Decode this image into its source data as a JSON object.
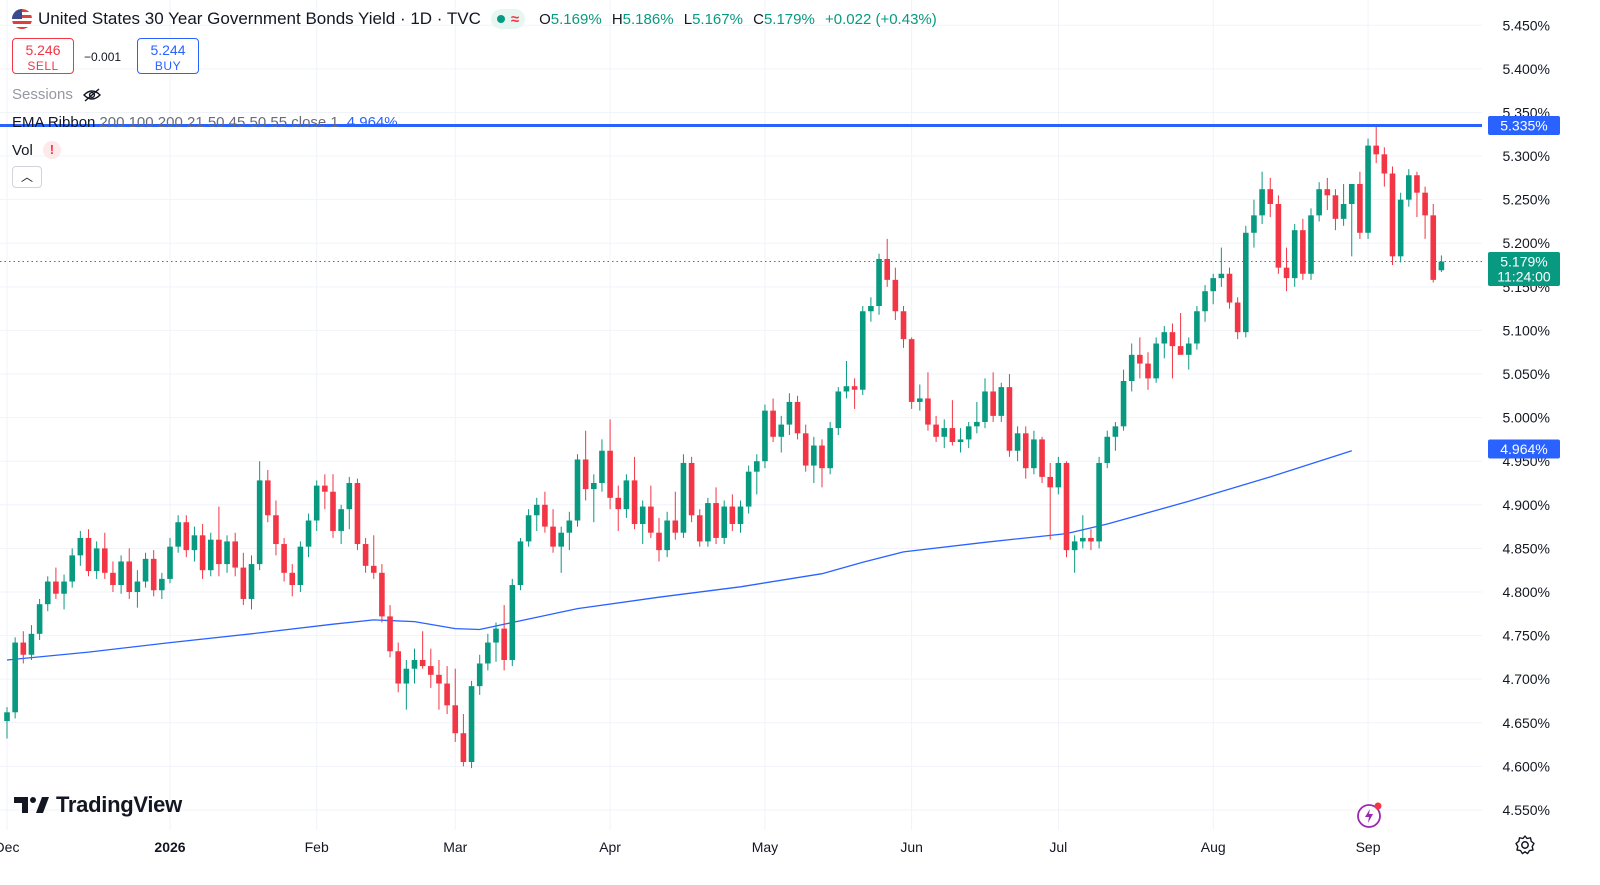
{
  "header": {
    "title": "United States 30 Year Government Bonds Yield · 1D · TVC",
    "ohlc": [
      {
        "key": "O",
        "value": "5.169%"
      },
      {
        "key": "H",
        "value": "5.186%"
      },
      {
        "key": "L",
        "value": "5.167%"
      },
      {
        "key": "C",
        "value": "5.179%"
      }
    ],
    "change": "+0.022 (+0.43%)",
    "flag_icon": "us-flag-icon"
  },
  "trade": {
    "sell_price": "5.246",
    "sell_label": "SELL",
    "spread": "−0.001",
    "buy_price": "5.244",
    "buy_label": "BUY"
  },
  "indicators": {
    "sessions_label": "Sessions",
    "ema_name": "EMA Ribbon",
    "ema_params": "200 100 200 21 50 45 50 55 close 1",
    "ema_value": "4.964%",
    "vol_label": "Vol",
    "vol_warning": "!"
  },
  "branding": {
    "logo_text": "TradingView"
  },
  "colors": {
    "up": "#089981",
    "down": "#f23645",
    "ema": "#2962ff",
    "hline": "#2962ff",
    "grid": "#f0f3fa",
    "axis_text": "#131722"
  },
  "chart_data": {
    "type": "candlestick",
    "y_axis": {
      "ticks": [
        "4.550%",
        "4.600%",
        "4.650%",
        "4.700%",
        "4.750%",
        "4.800%",
        "4.850%",
        "4.900%",
        "4.950%",
        "5.000%",
        "5.050%",
        "5.100%",
        "5.150%",
        "5.200%",
        "5.250%",
        "5.300%",
        "5.350%",
        "5.400%",
        "5.450%"
      ],
      "range": [
        4.527,
        5.479
      ]
    },
    "x_axis": {
      "ticks": [
        {
          "label": "Dec",
          "index": 0
        },
        {
          "label": "2026",
          "index": 20
        },
        {
          "label": "Feb",
          "index": 38
        },
        {
          "label": "Mar",
          "index": 55
        },
        {
          "label": "Apr",
          "index": 74
        },
        {
          "label": "May",
          "index": 93
        },
        {
          "label": "Jun",
          "index": 111
        },
        {
          "label": "Jul",
          "index": 129
        },
        {
          "label": "Aug",
          "index": 148
        },
        {
          "label": "Sep",
          "index": 167
        }
      ]
    },
    "horizontal_line": {
      "value": 5.335,
      "label": "5.335%"
    },
    "last_price": {
      "value": 5.179,
      "label": "5.179%",
      "countdown": "11:24:00"
    },
    "ema_label": {
      "value": 4.964,
      "label": "4.964%"
    },
    "candles": [
      [
        4.652,
        4.668,
        4.632,
        4.662
      ],
      [
        4.662,
        4.748,
        4.655,
        4.742
      ],
      [
        4.742,
        4.755,
        4.718,
        4.728
      ],
      [
        4.728,
        4.762,
        4.722,
        4.752
      ],
      [
        4.752,
        4.792,
        4.745,
        4.786
      ],
      [
        4.786,
        4.818,
        4.778,
        4.812
      ],
      [
        4.812,
        4.828,
        4.792,
        4.798
      ],
      [
        4.798,
        4.82,
        4.78,
        4.812
      ],
      [
        4.812,
        4.85,
        4.805,
        4.842
      ],
      [
        4.842,
        4.87,
        4.83,
        4.862
      ],
      [
        4.862,
        4.872,
        4.818,
        4.824
      ],
      [
        4.824,
        4.858,
        4.815,
        4.85
      ],
      [
        4.85,
        4.868,
        4.815,
        4.822
      ],
      [
        4.822,
        4.835,
        4.8,
        4.808
      ],
      [
        4.808,
        4.842,
        4.798,
        4.835
      ],
      [
        4.835,
        4.85,
        4.792,
        4.8
      ],
      [
        4.8,
        4.825,
        4.782,
        4.812
      ],
      [
        4.812,
        4.845,
        4.805,
        4.838
      ],
      [
        4.838,
        4.848,
        4.795,
        4.802
      ],
      [
        4.802,
        4.822,
        4.792,
        4.815
      ],
      [
        4.815,
        4.862,
        4.81,
        4.852
      ],
      [
        4.852,
        4.888,
        4.845,
        4.88
      ],
      [
        4.88,
        4.888,
        4.84,
        4.848
      ],
      [
        4.848,
        4.875,
        4.835,
        4.865
      ],
      [
        4.865,
        4.878,
        4.815,
        4.825
      ],
      [
        4.825,
        4.868,
        4.818,
        4.86
      ],
      [
        4.86,
        4.898,
        4.818,
        4.832
      ],
      [
        4.832,
        4.865,
        4.822,
        4.858
      ],
      [
        4.858,
        4.868,
        4.818,
        4.828
      ],
      [
        4.828,
        4.845,
        4.785,
        4.792
      ],
      [
        4.792,
        4.842,
        4.78,
        4.832
      ],
      [
        4.832,
        4.95,
        4.825,
        4.928
      ],
      [
        4.928,
        4.94,
        4.88,
        4.888
      ],
      [
        4.888,
        4.905,
        4.842,
        4.855
      ],
      [
        4.855,
        4.862,
        4.812,
        4.822
      ],
      [
        4.822,
        4.832,
        4.795,
        4.808
      ],
      [
        4.808,
        4.858,
        4.8,
        4.852
      ],
      [
        4.852,
        4.89,
        4.84,
        4.882
      ],
      [
        4.882,
        4.928,
        4.87,
        4.922
      ],
      [
        4.922,
        4.935,
        4.895,
        4.915
      ],
      [
        4.915,
        4.935,
        4.862,
        4.87
      ],
      [
        4.87,
        4.9,
        4.855,
        4.895
      ],
      [
        4.895,
        4.932,
        4.872,
        4.925
      ],
      [
        4.925,
        4.93,
        4.848,
        4.855
      ],
      [
        4.855,
        4.862,
        4.822,
        4.83
      ],
      [
        4.83,
        4.865,
        4.815,
        4.822
      ],
      [
        4.822,
        4.832,
        4.765,
        4.772
      ],
      [
        4.772,
        4.785,
        4.725,
        4.732
      ],
      [
        4.732,
        4.742,
        4.685,
        4.695
      ],
      [
        4.695,
        4.722,
        4.665,
        4.712
      ],
      [
        4.712,
        4.735,
        4.695,
        4.722
      ],
      [
        4.722,
        4.755,
        4.712,
        4.715
      ],
      [
        4.715,
        4.735,
        4.69,
        4.705
      ],
      [
        4.705,
        4.722,
        4.665,
        4.695
      ],
      [
        4.695,
        4.715,
        4.66,
        4.67
      ],
      [
        4.67,
        4.712,
        4.628,
        4.638
      ],
      [
        4.638,
        4.66,
        4.6,
        4.605
      ],
      [
        4.605,
        4.698,
        4.598,
        4.692
      ],
      [
        4.692,
        4.728,
        4.682,
        4.718
      ],
      [
        4.718,
        4.752,
        4.71,
        4.742
      ],
      [
        4.742,
        4.765,
        4.72,
        4.758
      ],
      [
        4.758,
        4.785,
        4.71,
        4.722
      ],
      [
        4.722,
        4.815,
        4.715,
        4.808
      ],
      [
        4.808,
        4.862,
        4.802,
        4.858
      ],
      [
        4.858,
        4.895,
        4.852,
        4.888
      ],
      [
        4.888,
        4.908,
        4.87,
        4.9
      ],
      [
        4.9,
        4.915,
        4.868,
        4.875
      ],
      [
        4.875,
        4.895,
        4.845,
        4.852
      ],
      [
        4.852,
        4.875,
        4.822,
        4.868
      ],
      [
        4.868,
        4.892,
        4.848,
        4.882
      ],
      [
        4.882,
        4.958,
        4.875,
        4.952
      ],
      [
        4.952,
        4.985,
        4.905,
        4.918
      ],
      [
        4.918,
        4.935,
        4.88,
        4.925
      ],
      [
        4.925,
        4.975,
        4.915,
        4.962
      ],
      [
        4.962,
        4.998,
        4.895,
        4.908
      ],
      [
        4.908,
        4.922,
        4.87,
        4.895
      ],
      [
        4.895,
        4.935,
        4.885,
        4.928
      ],
      [
        4.928,
        4.955,
        4.872,
        4.878
      ],
      [
        4.878,
        4.905,
        4.855,
        4.898
      ],
      [
        4.898,
        4.922,
        4.862,
        4.868
      ],
      [
        4.868,
        4.885,
        4.835,
        4.848
      ],
      [
        4.848,
        4.892,
        4.84,
        4.882
      ],
      [
        4.882,
        4.915,
        4.86,
        4.868
      ],
      [
        4.868,
        4.958,
        4.862,
        4.948
      ],
      [
        4.948,
        4.955,
        4.88,
        4.888
      ],
      [
        4.888,
        4.895,
        4.852,
        4.858
      ],
      [
        4.858,
        4.908,
        4.852,
        4.902
      ],
      [
        4.902,
        4.92,
        4.855,
        4.862
      ],
      [
        4.862,
        4.905,
        4.855,
        4.898
      ],
      [
        4.898,
        4.912,
        4.87,
        4.878
      ],
      [
        4.878,
        4.905,
        4.868,
        4.898
      ],
      [
        4.898,
        4.945,
        4.89,
        4.938
      ],
      [
        4.938,
        4.958,
        4.912,
        4.95
      ],
      [
        4.95,
        5.015,
        4.942,
        5.008
      ],
      [
        5.008,
        5.022,
        4.972,
        4.978
      ],
      [
        4.978,
        5.002,
        4.96,
        4.992
      ],
      [
        4.992,
        5.028,
        4.98,
        5.018
      ],
      [
        5.018,
        5.025,
        4.975,
        4.982
      ],
      [
        4.982,
        4.992,
        4.938,
        4.945
      ],
      [
        4.945,
        4.978,
        4.925,
        4.968
      ],
      [
        4.968,
        4.975,
        4.92,
        4.942
      ],
      [
        4.942,
        4.995,
        4.935,
        4.988
      ],
      [
        4.988,
        5.035,
        4.98,
        5.03
      ],
      [
        5.03,
        5.065,
        5.022,
        5.036
      ],
      [
        5.036,
        5.045,
        5.01,
        5.032
      ],
      [
        5.032,
        5.128,
        5.026,
        5.122
      ],
      [
        5.122,
        5.138,
        5.11,
        5.128
      ],
      [
        5.128,
        5.188,
        5.118,
        5.182
      ],
      [
        5.182,
        5.205,
        5.15,
        5.158
      ],
      [
        5.158,
        5.172,
        5.112,
        5.122
      ],
      [
        5.122,
        5.128,
        5.08,
        5.09
      ],
      [
        5.09,
        5.092,
        5.01,
        5.018
      ],
      [
        5.018,
        5.038,
        5.008,
        5.022
      ],
      [
        5.022,
        5.052,
        4.985,
        4.992
      ],
      [
        4.992,
        5.002,
        4.972,
        4.978
      ],
      [
        4.978,
        4.998,
        4.965,
        4.988
      ],
      [
        4.988,
        5.02,
        4.968,
        4.972
      ],
      [
        4.972,
        4.988,
        4.96,
        4.975
      ],
      [
        4.975,
        4.995,
        4.965,
        4.99
      ],
      [
        4.99,
        5.018,
        4.982,
        4.995
      ],
      [
        4.995,
        5.045,
        4.988,
        5.03
      ],
      [
        5.03,
        5.052,
        4.995,
        5.002
      ],
      [
        5.002,
        5.04,
        4.995,
        5.035
      ],
      [
        5.035,
        5.05,
        4.955,
        4.962
      ],
      [
        4.962,
        4.99,
        4.95,
        4.982
      ],
      [
        4.982,
        4.99,
        4.93,
        4.942
      ],
      [
        4.942,
        4.985,
        4.935,
        4.975
      ],
      [
        4.975,
        4.978,
        4.925,
        4.932
      ],
      [
        4.932,
        4.948,
        4.86,
        4.92
      ],
      [
        4.92,
        4.955,
        4.912,
        4.948
      ],
      [
        4.948,
        4.95,
        4.84,
        4.848
      ],
      [
        4.848,
        4.865,
        4.822,
        4.858
      ],
      [
        4.858,
        4.888,
        4.85,
        4.862
      ],
      [
        4.862,
        4.872,
        4.848,
        4.858
      ],
      [
        4.858,
        4.955,
        4.85,
        4.948
      ],
      [
        4.948,
        4.985,
        4.942,
        4.978
      ],
      [
        4.978,
        4.995,
        4.962,
        4.99
      ],
      [
        4.99,
        5.055,
        4.985,
        5.042
      ],
      [
        5.042,
        5.085,
        5.03,
        5.072
      ],
      [
        5.072,
        5.092,
        5.045,
        5.062
      ],
      [
        5.062,
        5.075,
        5.032,
        5.045
      ],
      [
        5.045,
        5.092,
        5.04,
        5.085
      ],
      [
        5.085,
        5.105,
        5.068,
        5.098
      ],
      [
        5.098,
        5.108,
        5.045,
        5.082
      ],
      [
        5.082,
        5.12,
        5.075,
        5.072
      ],
      [
        5.072,
        5.092,
        5.055,
        5.085
      ],
      [
        5.085,
        5.128,
        5.078,
        5.122
      ],
      [
        5.122,
        5.152,
        5.11,
        5.145
      ],
      [
        5.145,
        5.165,
        5.13,
        5.16
      ],
      [
        5.16,
        5.195,
        5.15,
        5.165
      ],
      [
        5.165,
        5.172,
        5.125,
        5.132
      ],
      [
        5.132,
        5.138,
        5.09,
        5.098
      ],
      [
        5.098,
        5.22,
        5.092,
        5.212
      ],
      [
        5.212,
        5.25,
        5.195,
        5.232
      ],
      [
        5.232,
        5.282,
        5.222,
        5.262
      ],
      [
        5.262,
        5.275,
        5.23,
        5.245
      ],
      [
        5.245,
        5.255,
        5.165,
        5.172
      ],
      [
        5.172,
        5.195,
        5.145,
        5.16
      ],
      [
        5.16,
        5.222,
        5.15,
        5.215
      ],
      [
        5.215,
        5.228,
        5.158,
        5.165
      ],
      [
        5.165,
        5.24,
        5.158,
        5.232
      ],
      [
        5.232,
        5.27,
        5.225,
        5.262
      ],
      [
        5.262,
        5.275,
        5.238,
        5.255
      ],
      [
        5.255,
        5.262,
        5.215,
        5.228
      ],
      [
        5.228,
        5.268,
        5.22,
        5.245
      ],
      [
        5.245,
        5.262,
        5.185,
        5.268
      ],
      [
        5.268,
        5.282,
        5.205,
        5.212
      ],
      [
        5.212,
        5.32,
        5.205,
        5.312
      ],
      [
        5.312,
        5.335,
        5.292,
        5.302
      ],
      [
        5.302,
        5.31,
        5.265,
        5.28
      ],
      [
        5.28,
        5.288,
        5.175,
        5.185
      ],
      [
        5.185,
        5.258,
        5.178,
        5.25
      ],
      [
        5.25,
        5.285,
        5.242,
        5.278
      ],
      [
        5.278,
        5.282,
        5.23,
        5.258
      ],
      [
        5.258,
        5.265,
        5.205,
        5.232
      ],
      [
        5.232,
        5.245,
        5.155,
        5.158
      ],
      [
        5.169,
        5.186,
        5.167,
        5.179
      ]
    ],
    "ema_series": [
      {
        "index": 0,
        "value": 4.722
      },
      {
        "index": 10,
        "value": 4.731
      },
      {
        "index": 20,
        "value": 4.742
      },
      {
        "index": 30,
        "value": 4.752
      },
      {
        "index": 40,
        "value": 4.763
      },
      {
        "index": 45,
        "value": 4.768
      },
      {
        "index": 50,
        "value": 4.766
      },
      {
        "index": 55,
        "value": 4.758
      },
      {
        "index": 58,
        "value": 4.757
      },
      {
        "index": 62,
        "value": 4.765
      },
      {
        "index": 70,
        "value": 4.781
      },
      {
        "index": 80,
        "value": 4.794
      },
      {
        "index": 90,
        "value": 4.806
      },
      {
        "index": 100,
        "value": 4.821
      },
      {
        "index": 105,
        "value": 4.834
      },
      {
        "index": 110,
        "value": 4.846
      },
      {
        "index": 120,
        "value": 4.857
      },
      {
        "index": 126,
        "value": 4.863
      },
      {
        "index": 130,
        "value": 4.867
      },
      {
        "index": 135,
        "value": 4.878
      },
      {
        "index": 145,
        "value": 4.904
      },
      {
        "index": 155,
        "value": 4.932
      },
      {
        "index": 165,
        "value": 4.962
      }
    ]
  }
}
